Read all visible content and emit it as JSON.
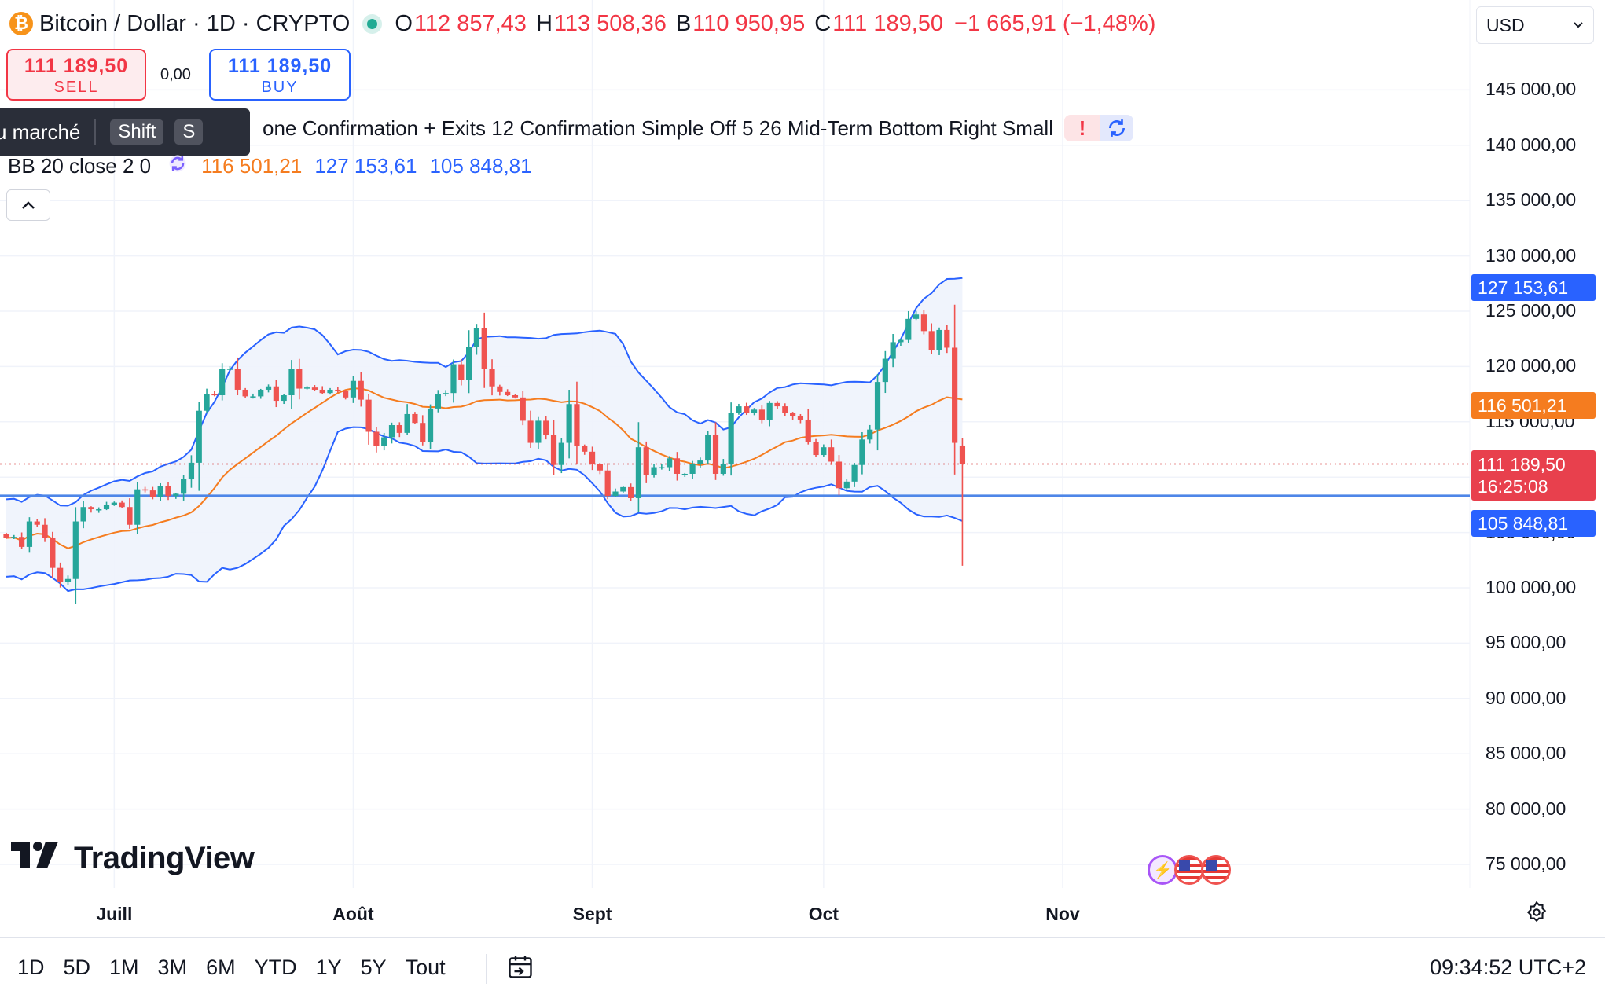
{
  "header": {
    "symbol": "Bitcoin / Dollar · 1D · CRYPTO",
    "coin_icon": "₿",
    "open_label": "O",
    "open": "112 857,43",
    "high_label": "H",
    "high": "113 508,36",
    "low_label": "B",
    "low": "110 950,95",
    "close_label": "C",
    "close": "111 189,50",
    "change": "−1 665,91 (−1,48%)"
  },
  "trade": {
    "sell_price": "111 189,50",
    "sell_label": "SELL",
    "spread": "0,00",
    "buy_price": "111 189,50",
    "buy_label": "BUY"
  },
  "tooltip": {
    "text": "u marché",
    "key1": "Shift",
    "key2": "S"
  },
  "indicators": {
    "strategy": "one Confirmation + Exits 12 Confirmation Simple Off 5 26 Mid-Term Bottom Right Small",
    "warn": "!",
    "bb": {
      "label": "BB 20 close 2 0",
      "middle": "116 501,21",
      "upper": "127 153,61",
      "lower": "105 848,81"
    }
  },
  "currency": "USD",
  "price_labels": {
    "upper": "127 153,61",
    "middle": "116 501,21",
    "last": "111 189,50",
    "countdown": "16:25:08",
    "lower": "105 848,81"
  },
  "colors": {
    "up": "#26a69a",
    "down": "#ef5350",
    "bb_basis": "#f57c1f",
    "bb_band": "#2962ff",
    "bb_fill": "#eef3fc",
    "hline": "#4e86e8",
    "last_line": "#d32f2f"
  },
  "bottom": {
    "ranges": [
      "1D",
      "5D",
      "1M",
      "3M",
      "6M",
      "YTD",
      "1Y",
      "5Y",
      "Tout"
    ],
    "time": "09:34:52 UTC+2"
  },
  "logo_text": "TradingView",
  "chart_data": {
    "type": "candlestick",
    "symbol": "BTCUSD",
    "timeframe": "1D",
    "ylim": [
      72500,
      155000
    ],
    "y_ticks": [
      "75 000,00",
      "80 000,00",
      "85 000,00",
      "90 000,00",
      "95 000,00",
      "100 000,00",
      "105 000,00",
      "110 000,00",
      "115 000,00",
      "120 000,00",
      "125 000,00",
      "130 000,00",
      "135 000,00",
      "140 000,00",
      "145 000,00"
    ],
    "y_tick_values": [
      75000,
      80000,
      85000,
      90000,
      95000,
      100000,
      105000,
      110000,
      115000,
      120000,
      125000,
      130000,
      135000,
      140000,
      145000
    ],
    "x_ticks": [
      {
        "label": "Juill",
        "date": "2025-07-01"
      },
      {
        "label": "Août",
        "date": "2025-08-01"
      },
      {
        "label": "Sept",
        "date": "2025-09-01"
      },
      {
        "label": "Oct",
        "date": "2025-10-01"
      },
      {
        "label": "Nov",
        "date": "2025-11-01"
      }
    ],
    "first_date": "2025-06-17",
    "last_date": "2025-10-10",
    "closes": [
      104500,
      104600,
      103700,
      106000,
      105700,
      104500,
      101800,
      100500,
      100800,
      106000,
      107300,
      107100,
      107100,
      107500,
      107700,
      107300,
      105700,
      108900,
      108800,
      108200,
      109200,
      108300,
      108500,
      109800,
      111300,
      116000,
      117500,
      117400,
      119800,
      119800,
      117900,
      117300,
      117300,
      117900,
      118200,
      116900,
      117400,
      119800,
      118000,
      118100,
      117900,
      117600,
      117900,
      117800,
      117200,
      118700,
      117000,
      114100,
      112800,
      113600,
      114700,
      114000,
      115700,
      114900,
      113200,
      116200,
      117500,
      117600,
      120200,
      118800,
      121800,
      123500,
      119800,
      118200,
      117700,
      117400,
      117200,
      115100,
      113100,
      115100,
      113800,
      111100,
      113100,
      116600,
      112800,
      112300,
      111200,
      110600,
      108300,
      108700,
      109100,
      108100,
      112700,
      110200,
      110900,
      110900,
      111700,
      110300,
      110300,
      111200,
      111500,
      113800,
      110300,
      111200,
      115800,
      116400,
      115800,
      116100,
      115200,
      116700,
      116400,
      115800,
      115500,
      115200,
      113200,
      112000,
      112700,
      111400,
      109000,
      109600,
      111100,
      113400,
      114300,
      118600,
      120700,
      122200,
      122400,
      124300,
      124700,
      123200,
      121500,
      123300,
      121700,
      113100,
      111189.5
    ]
  }
}
